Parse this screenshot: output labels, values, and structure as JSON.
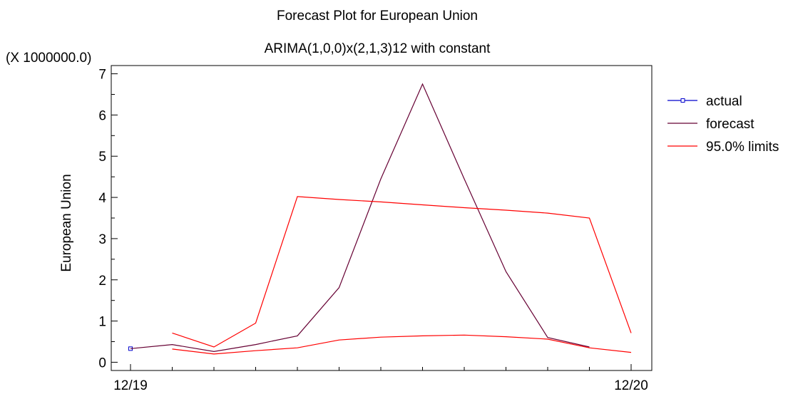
{
  "chart_data": {
    "type": "line",
    "title": "Forecast Plot for European Union",
    "subtitle": "ARIMA(1,0,0)x(2,1,3)12 with constant",
    "ylabel": "European Union",
    "y_multiplier": "(X 1000000.0)",
    "ylim": [
      -0.2,
      7.2
    ],
    "xlim": [
      "12/19",
      "12/20"
    ],
    "y_ticks": [
      "0",
      "1",
      "2",
      "3",
      "4",
      "5",
      "6",
      "7"
    ],
    "x_ticks": [
      "12/19",
      "12/20"
    ],
    "x": [
      "12/19",
      "1/20",
      "2/20",
      "3/20",
      "4/20",
      "5/20",
      "6/20",
      "7/20",
      "8/20",
      "9/20",
      "10/20",
      "11/20",
      "12/20"
    ],
    "legend_position": "right",
    "series": [
      {
        "name": "actual",
        "color": "#0000cc",
        "marker": "square",
        "values": [
          0.33,
          null,
          null,
          null,
          null,
          null,
          null,
          null,
          null,
          null,
          null,
          null,
          null
        ]
      },
      {
        "name": "forecast",
        "color": "#660033",
        "values": [
          0.33,
          0.43,
          0.26,
          0.43,
          0.64,
          1.81,
          4.45,
          6.75,
          4.45,
          2.2,
          0.6,
          0.37,
          null
        ]
      },
      {
        "name": "95.0% limits",
        "color": "#ff0000",
        "segments": [
          [
            null,
            0.71,
            0.37,
            0.95,
            4.02,
            3.95,
            3.89,
            3.82,
            3.75,
            3.69,
            3.62,
            3.5,
            0.71
          ],
          [
            null,
            0.32,
            0.2,
            0.28,
            0.35,
            0.54,
            0.61,
            0.64,
            0.66,
            0.62,
            0.56,
            0.35,
            0.24
          ]
        ]
      }
    ]
  }
}
